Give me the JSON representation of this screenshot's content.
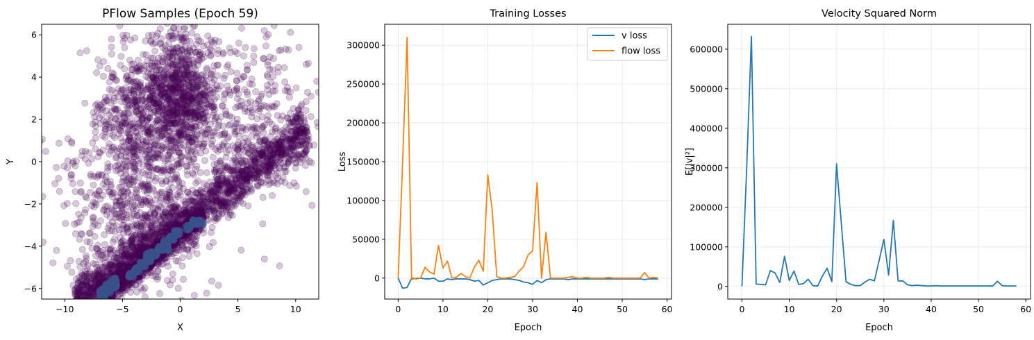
{
  "chart_data": [
    {
      "type": "scatter",
      "title": "PFlow Samples (Epoch 59)",
      "xlabel": "X",
      "ylabel": "Y",
      "xlim": [
        -12,
        12
      ],
      "ylim": [
        -6.5,
        6.5
      ],
      "xticks": [
        -10,
        -5,
        0,
        5,
        10
      ],
      "xtick_labels": [
        "−10",
        "−5",
        "0",
        "5",
        "10"
      ],
      "yticks": [
        -6,
        -4,
        -2,
        0,
        2,
        4,
        6
      ],
      "ytick_labels": [
        "−6",
        "−4",
        "−2",
        "0",
        "2",
        "4",
        "6"
      ],
      "grid": false,
      "point_color": "#440154",
      "density_colormap": [
        "#440154",
        "#3b528b",
        "#21918c",
        "#5ec962",
        "#fde725"
      ],
      "clusters": [
        {
          "kind": "blob",
          "center": [
            0,
            3
          ],
          "spread": [
            1.6,
            1.6
          ],
          "count": 900
        },
        {
          "kind": "blob",
          "center": [
            -4,
            2.5
          ],
          "spread": [
            1.8,
            1.6
          ],
          "count": 350
        },
        {
          "kind": "band",
          "from": [
            -9,
            -6.6
          ],
          "to": [
            11,
            1.5
          ],
          "width": 0.55,
          "count": 1800
        },
        {
          "kind": "band",
          "from": [
            -7,
            -6.5
          ],
          "to": [
            2,
            -2.6
          ],
          "width": 0.25,
          "count": 900
        },
        {
          "kind": "blob",
          "center": [
            -4,
            -2
          ],
          "spread": [
            3,
            2.2
          ],
          "count": 700
        },
        {
          "kind": "blob",
          "center": [
            6,
            2
          ],
          "spread": [
            3,
            2
          ],
          "count": 350
        }
      ]
    },
    {
      "type": "line",
      "title": "Training Losses",
      "xlabel": "Epoch",
      "ylabel": "Loss",
      "xlim": [
        -3,
        61
      ],
      "ylim": [
        -27000,
        327000
      ],
      "xticks": [
        0,
        10,
        20,
        30,
        40,
        50,
        60
      ],
      "xtick_labels": [
        "0",
        "10",
        "20",
        "30",
        "40",
        "50",
        "60"
      ],
      "yticks": [
        0,
        50000,
        100000,
        150000,
        200000,
        250000,
        300000
      ],
      "ytick_labels": [
        "0",
        "50000",
        "100000",
        "150000",
        "200000",
        "250000",
        "300000"
      ],
      "grid": true,
      "legend": "top-right",
      "x": [
        0,
        1,
        2,
        3,
        4,
        5,
        6,
        7,
        8,
        9,
        10,
        11,
        12,
        13,
        14,
        15,
        16,
        17,
        18,
        19,
        20,
        21,
        22,
        23,
        24,
        25,
        26,
        27,
        28,
        29,
        30,
        31,
        32,
        33,
        34,
        35,
        36,
        37,
        38,
        39,
        40,
        41,
        42,
        43,
        44,
        45,
        46,
        47,
        48,
        49,
        50,
        51,
        52,
        53,
        54,
        55,
        56,
        57,
        58
      ],
      "series": [
        {
          "name": "v loss",
          "color": "#1f77b4",
          "values": [
            0,
            -13000,
            -12000,
            0,
            -1000,
            0,
            -1000,
            -1000,
            0,
            -4000,
            -4000,
            -1000,
            -2000,
            -1000,
            -1000,
            -1000,
            -2000,
            -4000,
            -3000,
            -9000,
            -6000,
            -3000,
            -2000,
            -1000,
            -1000,
            -1000,
            -2000,
            -3000,
            -5000,
            -6000,
            -8000,
            -3000,
            -6000,
            -2000,
            -1000,
            -1000,
            -1000,
            -1000,
            -2000,
            -1000,
            -1000,
            -1000,
            -1000,
            -1000,
            -1000,
            -1000,
            -1000,
            -1000,
            -1000,
            -1000,
            -1000,
            -1000,
            -1000,
            -1000,
            -1000,
            -2000,
            -1000,
            -1000,
            -1000
          ]
        },
        {
          "name": "flow loss",
          "color": "#ff7f0e",
          "values": [
            0,
            150000,
            310000,
            -2000,
            0,
            0,
            14000,
            8000,
            5000,
            42000,
            13000,
            22000,
            0,
            1000,
            6000,
            2000,
            0,
            14000,
            23000,
            9000,
            133000,
            87000,
            2000,
            0,
            0,
            1000,
            2000,
            9000,
            15000,
            30000,
            35000,
            123000,
            0,
            59000,
            0,
            0,
            0,
            0,
            1000,
            2000,
            0,
            0,
            1000,
            0,
            0,
            0,
            0,
            1000,
            0,
            0,
            0,
            0,
            0,
            0,
            0,
            7000,
            0,
            1000,
            0
          ]
        }
      ]
    },
    {
      "type": "line",
      "title": "Velocity Squared Norm",
      "xlabel": "Epoch",
      "ylabel": "E[|v|²]",
      "xlim": [
        -3,
        61
      ],
      "ylim": [
        -32000,
        663000
      ],
      "xticks": [
        0,
        10,
        20,
        30,
        40,
        50,
        60
      ],
      "xtick_labels": [
        "0",
        "10",
        "20",
        "30",
        "40",
        "50",
        "60"
      ],
      "yticks": [
        0,
        100000,
        200000,
        300000,
        400000,
        500000,
        600000
      ],
      "ytick_labels": [
        "0",
        "100000",
        "200000",
        "300000",
        "400000",
        "500000",
        "600000"
      ],
      "grid": true,
      "x": [
        0,
        1,
        2,
        3,
        4,
        5,
        6,
        7,
        8,
        9,
        10,
        11,
        12,
        13,
        14,
        15,
        16,
        17,
        18,
        19,
        20,
        21,
        22,
        23,
        24,
        25,
        26,
        27,
        28,
        29,
        30,
        31,
        32,
        33,
        34,
        35,
        36,
        37,
        38,
        39,
        40,
        41,
        42,
        43,
        44,
        45,
        46,
        47,
        48,
        49,
        50,
        51,
        52,
        53,
        54,
        55,
        56,
        57,
        58
      ],
      "series": [
        {
          "name": "",
          "color": "#1f77b4",
          "values": [
            0,
            300000,
            632000,
            6000,
            5000,
            4000,
            40000,
            34000,
            10000,
            76000,
            15000,
            39000,
            5000,
            7000,
            18000,
            2000,
            1000,
            26000,
            46000,
            12000,
            310000,
            160000,
            12000,
            5000,
            2000,
            2000,
            11000,
            18000,
            14000,
            66000,
            119000,
            29000,
            167000,
            14000,
            14000,
            4000,
            2000,
            3000,
            2000,
            1000,
            1000,
            2000,
            1000,
            1000,
            1000,
            1000,
            1000,
            1000,
            1000,
            1000,
            1000,
            1000,
            1000,
            1000,
            13000,
            2000,
            1000,
            1000,
            1000
          ]
        }
      ]
    }
  ]
}
